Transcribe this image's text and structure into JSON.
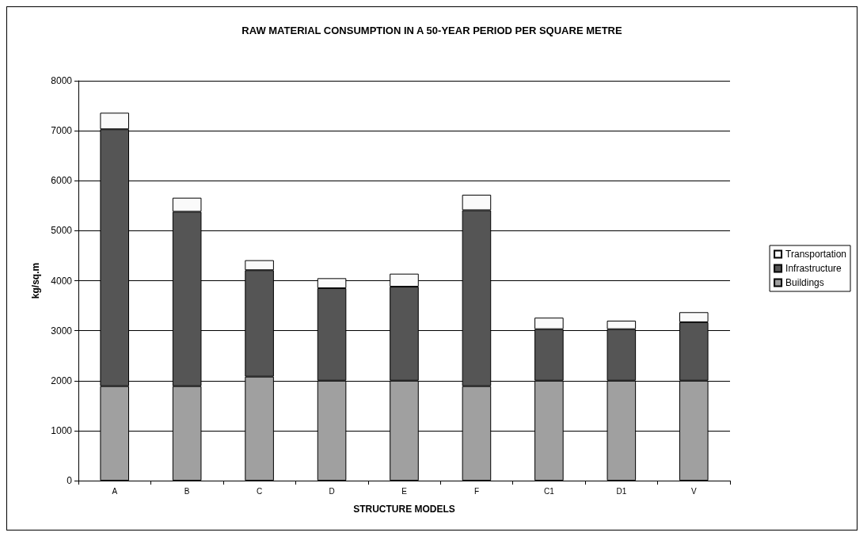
{
  "chart_data": {
    "type": "bar",
    "title": "RAW MATERIAL CONSUMPTION IN A 50-YEAR PERIOD PER SQUARE METRE",
    "xlabel": "STRUCTURE MODELS",
    "ylabel": "kg/sq.m",
    "categories": [
      "A",
      "B",
      "C",
      "D",
      "E",
      "F",
      "C1",
      "D1",
      "V"
    ],
    "stacked": true,
    "series": [
      {
        "name": "Buildings",
        "color": "#a0a0a0",
        "values": [
          1890,
          1890,
          2080,
          2000,
          2000,
          1890,
          2000,
          2000,
          2000
        ]
      },
      {
        "name": "Infrastructure",
        "color": "#555555",
        "values": [
          5140,
          3490,
          2130,
          1850,
          1880,
          3520,
          1030,
          1030,
          1170
        ]
      },
      {
        "name": "Transportation",
        "color": "#fafafa",
        "values": [
          330,
          280,
          200,
          200,
          260,
          310,
          230,
          170,
          200
        ]
      }
    ],
    "ylim": [
      0,
      8000
    ],
    "yticks": [
      0,
      1000,
      2000,
      3000,
      4000,
      5000,
      6000,
      7000,
      8000
    ],
    "grid": "y",
    "legend": "right"
  }
}
